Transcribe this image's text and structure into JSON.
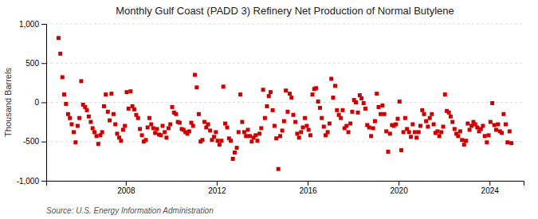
{
  "chart_data": {
    "type": "scatter",
    "title": "Monthly Gulf Coast (PADD 3) Refinery Net Production of Normal Butylene",
    "ylabel": "Thousand Barrels",
    "source": "Source: U.S. Energy Information Administration",
    "color": "#cc0000",
    "marker": "square",
    "grid": true,
    "xlim": [
      2004.5,
      2025.5
    ],
    "xticks": [
      2008,
      2012,
      2016,
      2020,
      2024
    ],
    "ylim": [
      -1000,
      1000
    ],
    "yticks": [
      {
        "value": -1000,
        "label": "-1,000"
      },
      -500,
      0,
      500,
      {
        "value": 1000,
        "label": "1,000"
      }
    ],
    "x": [
      2005.04,
      2005.12,
      2005.21,
      2005.29,
      2005.37,
      2005.46,
      2005.54,
      2005.62,
      2005.71,
      2005.79,
      2005.88,
      2005.96,
      2006.04,
      2006.12,
      2006.21,
      2006.29,
      2006.37,
      2006.46,
      2006.54,
      2006.62,
      2006.71,
      2006.79,
      2006.88,
      2006.96,
      2007.04,
      2007.12,
      2007.21,
      2007.29,
      2007.37,
      2007.46,
      2007.54,
      2007.62,
      2007.71,
      2007.79,
      2007.88,
      2007.96,
      2008.04,
      2008.12,
      2008.21,
      2008.29,
      2008.37,
      2008.46,
      2008.54,
      2008.62,
      2008.71,
      2008.79,
      2008.88,
      2008.96,
      2009.04,
      2009.12,
      2009.21,
      2009.29,
      2009.37,
      2009.46,
      2009.54,
      2009.62,
      2009.71,
      2009.79,
      2009.88,
      2009.96,
      2010.04,
      2010.12,
      2010.21,
      2010.29,
      2010.37,
      2010.46,
      2010.54,
      2010.62,
      2010.71,
      2010.79,
      2010.88,
      2010.96,
      2011.04,
      2011.12,
      2011.21,
      2011.29,
      2011.37,
      2011.46,
      2011.54,
      2011.62,
      2011.71,
      2011.79,
      2011.88,
      2011.96,
      2012.04,
      2012.12,
      2012.21,
      2012.29,
      2012.37,
      2012.46,
      2012.54,
      2012.62,
      2012.71,
      2012.79,
      2012.88,
      2012.96,
      2013.04,
      2013.12,
      2013.21,
      2013.29,
      2013.37,
      2013.46,
      2013.54,
      2013.62,
      2013.71,
      2013.79,
      2013.88,
      2013.96,
      2014.04,
      2014.12,
      2014.21,
      2014.29,
      2014.37,
      2014.46,
      2014.54,
      2014.62,
      2014.71,
      2014.79,
      2014.88,
      2014.96,
      2015.04,
      2015.12,
      2015.21,
      2015.29,
      2015.37,
      2015.46,
      2015.54,
      2015.62,
      2015.71,
      2015.79,
      2015.88,
      2015.96,
      2016.04,
      2016.12,
      2016.21,
      2016.29,
      2016.37,
      2016.46,
      2016.54,
      2016.62,
      2016.71,
      2016.79,
      2016.88,
      2016.96,
      2017.04,
      2017.12,
      2017.21,
      2017.29,
      2017.37,
      2017.46,
      2017.54,
      2017.62,
      2017.71,
      2017.79,
      2017.88,
      2017.96,
      2018.04,
      2018.12,
      2018.21,
      2018.29,
      2018.37,
      2018.46,
      2018.54,
      2018.62,
      2018.71,
      2018.79,
      2018.88,
      2018.96,
      2019.04,
      2019.12,
      2019.21,
      2019.29,
      2019.37,
      2019.46,
      2019.54,
      2019.62,
      2019.71,
      2019.79,
      2019.88,
      2019.96,
      2020.04,
      2020.12,
      2020.21,
      2020.29,
      2020.37,
      2020.46,
      2020.54,
      2020.62,
      2020.71,
      2020.79,
      2020.88,
      2020.96,
      2021.04,
      2021.12,
      2021.21,
      2021.29,
      2021.37,
      2021.46,
      2021.54,
      2021.62,
      2021.71,
      2021.79,
      2021.88,
      2021.96,
      2022.04,
      2022.12,
      2022.21,
      2022.29,
      2022.37,
      2022.46,
      2022.54,
      2022.62,
      2022.71,
      2022.79,
      2022.88,
      2022.96,
      2023.04,
      2023.12,
      2023.21,
      2023.29,
      2023.37,
      2023.46,
      2023.54,
      2023.62,
      2023.71,
      2023.79,
      2023.88,
      2023.96,
      2024.04,
      2024.12,
      2024.21,
      2024.29,
      2024.37,
      2024.46,
      2024.54,
      2024.62,
      2024.71,
      2024.79,
      2024.88,
      2024.96
    ],
    "values": [
      820,
      620,
      320,
      100,
      -20,
      -150,
      -200,
      -280,
      -380,
      -510,
      -300,
      -200,
      270,
      -30,
      -60,
      -100,
      -180,
      -250,
      -330,
      -380,
      -430,
      -530,
      -420,
      -380,
      -50,
      100,
      -120,
      -230,
      110,
      -150,
      -280,
      -400,
      -450,
      -490,
      -350,
      -300,
      130,
      -80,
      140,
      -50,
      -90,
      -160,
      -200,
      -340,
      -420,
      -500,
      -480,
      -320,
      -200,
      -280,
      -330,
      -390,
      -340,
      -410,
      -420,
      -300,
      -380,
      -450,
      -330,
      -280,
      -60,
      -130,
      -150,
      -250,
      -260,
      -340,
      -350,
      -380,
      -400,
      -370,
      -260,
      -300,
      350,
      190,
      -150,
      -500,
      -480,
      -250,
      -320,
      -280,
      -360,
      -480,
      -440,
      -380,
      -490,
      -540,
      -490,
      200,
      -270,
      -320,
      -460,
      -490,
      -720,
      -640,
      -580,
      -380,
      100,
      -250,
      -380,
      -430,
      -350,
      -430,
      -500,
      -450,
      -420,
      -490,
      -400,
      -330,
      160,
      -200,
      -50,
      80,
      130,
      -100,
      -300,
      -460,
      -850,
      -430,
      -360,
      -240,
      150,
      -120,
      110,
      60,
      -160,
      -250,
      -400,
      -450,
      -380,
      -320,
      -200,
      -300,
      -350,
      -420,
      100,
      170,
      180,
      10,
      -70,
      -200,
      -310,
      -420,
      -380,
      -270,
      300,
      60,
      210,
      -100,
      -160,
      -200,
      -100,
      -330,
      -300,
      -380,
      -270,
      -120,
      30,
      0,
      -130,
      90,
      50,
      -10,
      -80,
      -290,
      -320,
      -430,
      -330,
      -240,
      110,
      -60,
      -150,
      -40,
      -150,
      -370,
      -630,
      -400,
      -290,
      -300,
      -280,
      -210,
      10,
      -610,
      -380,
      -200,
      -340,
      -380,
      -440,
      -280,
      -380,
      -450,
      -380,
      -300,
      -100,
      -150,
      -240,
      -310,
      -200,
      -150,
      -280,
      -390,
      -370,
      -430,
      -380,
      -310,
      100,
      -110,
      -130,
      -180,
      -250,
      -340,
      -400,
      -430,
      -370,
      -480,
      -540,
      -490,
      -270,
      -350,
      -300,
      -250,
      -280,
      -320,
      -370,
      -340,
      -300,
      -430,
      -510,
      -420,
      -250,
      -10,
      -290,
      -350,
      -280,
      -370,
      -390,
      -150,
      -280,
      -510,
      -370,
      -520
    ]
  }
}
